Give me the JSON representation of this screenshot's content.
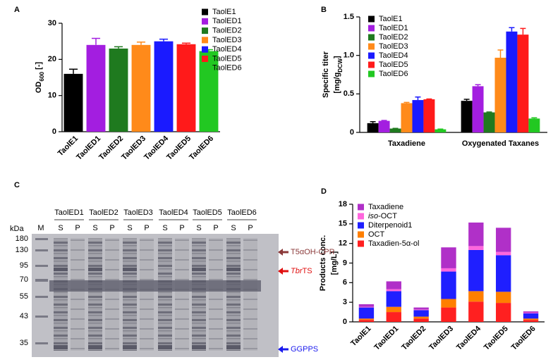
{
  "chart_data": [
    {
      "panel": "A",
      "type": "bar",
      "ylabel": [
        [
          {
            "text": "OD"
          },
          {
            "sub": "600"
          },
          {
            "text": " [-]"
          }
        ]
      ],
      "categories": [
        "TaolE1",
        "TaolED1",
        "TaolED2",
        "TaolED3",
        "TaolED4",
        "TaolED5",
        "TaolED6"
      ],
      "values": [
        16,
        24,
        23,
        24,
        25,
        24.2,
        22.3
      ],
      "errors": [
        1.3,
        1.8,
        0.5,
        0.8,
        0.6,
        0.3,
        0.4
      ],
      "colors": [
        "#000000",
        "#a31ee0",
        "#1f7a1f",
        "#ff8a1a",
        "#1a1aff",
        "#ff1a1a",
        "#22c822"
      ],
      "ylim": [
        0,
        30
      ],
      "yticks": [
        0,
        10,
        20,
        30
      ],
      "legend": "upper right"
    },
    {
      "panel": "B",
      "type": "grouped_bar",
      "ylabel": [
        [
          {
            "text": "Specific titer"
          }
        ],
        [
          {
            "text": "[mg/g"
          },
          {
            "sub": "DCW"
          },
          {
            "text": "]"
          }
        ]
      ],
      "categories": [
        "Taxadiene",
        "Oxygenated Taxanes"
      ],
      "series": [
        {
          "name": "TaolE1",
          "color": "#000000",
          "values": [
            0.12,
            0.41
          ],
          "errors": [
            0.02,
            0.02
          ]
        },
        {
          "name": "TaolED1",
          "color": "#a31ee0",
          "values": [
            0.15,
            0.6
          ],
          "errors": [
            0.005,
            0.02
          ]
        },
        {
          "name": "TaolED2",
          "color": "#1f7a1f",
          "values": [
            0.05,
            0.26
          ],
          "errors": [
            0.003,
            0.005
          ]
        },
        {
          "name": "TaolED3",
          "color": "#ff8a1a",
          "values": [
            0.38,
            0.97
          ],
          "errors": [
            0.01,
            0.1
          ]
        },
        {
          "name": "TaolED4",
          "color": "#1a1aff",
          "values": [
            0.42,
            1.31
          ],
          "errors": [
            0.04,
            0.05
          ]
        },
        {
          "name": "TaolED5",
          "color": "#ff1a1a",
          "values": [
            0.43,
            1.27
          ],
          "errors": [
            0.005,
            0.08
          ]
        },
        {
          "name": "TaolED6",
          "color": "#22c822",
          "values": [
            0.04,
            0.18
          ],
          "errors": [
            0.003,
            0.01
          ]
        }
      ],
      "ylim": [
        0,
        1.5
      ],
      "yticks": [
        0,
        0.5,
        {
          "value": 1,
          "label": "1.0"
        },
        1.5
      ],
      "legend": "upper left"
    },
    {
      "panel": "D",
      "type": "stacked_bar",
      "ylabel": [
        [
          {
            "text": "Products conc."
          }
        ],
        [
          {
            "text": "[mg/L]"
          }
        ]
      ],
      "categories": [
        "TaolE1",
        "TaolED1",
        "TaolED2",
        "TaolED3",
        "TaolED4",
        "TaolED5",
        "TaolED6"
      ],
      "series": [
        {
          "name": [
            {
              "text": "Taxadien-5α-ol"
            }
          ],
          "color": "#ff2020",
          "values": [
            0.3,
            1.5,
            0.5,
            2.2,
            3.1,
            2.9,
            0.3
          ]
        },
        {
          "name": [
            {
              "text": "OCT"
            }
          ],
          "color": "#ff7f00",
          "values": [
            0.2,
            0.8,
            0.3,
            1.3,
            1.6,
            1.7,
            0.2
          ]
        },
        {
          "name": [
            {
              "text": "Diterpenoid1"
            }
          ],
          "color": "#1f1fff",
          "values": [
            1.7,
            2.4,
            1.0,
            4.2,
            6.3,
            5.6,
            0.8
          ]
        },
        {
          "name": [
            {
              "italic": "iso"
            },
            {
              "text": "-OCT"
            }
          ],
          "color": "#ff66dd",
          "values": [
            0.1,
            0.3,
            0.1,
            0.5,
            0.6,
            0.5,
            0.1
          ]
        },
        {
          "name": [
            {
              "text": "Taxadiene"
            }
          ],
          "color": "#b030c8",
          "values": [
            0.4,
            1.2,
            0.3,
            3.2,
            3.6,
            3.7,
            0.2
          ]
        }
      ],
      "ylim": [
        0,
        18
      ],
      "yticks": [
        0,
        3,
        6,
        9,
        12,
        15,
        18
      ],
      "legend": "upper left"
    }
  ],
  "gel": {
    "panel": "C",
    "unit": "kDa",
    "marker": "M",
    "groups": [
      {
        "name": "TaolED1",
        "lanes": [
          "S",
          "P"
        ]
      },
      {
        "name": "TaolED2",
        "lanes": [
          "S",
          "P"
        ]
      },
      {
        "name": "TaolED3",
        "lanes": [
          "S",
          "P"
        ]
      },
      {
        "name": "TaolED4",
        "lanes": [
          "S",
          "P"
        ]
      },
      {
        "name": "TaolED5",
        "lanes": [
          "S",
          "P"
        ]
      },
      {
        "name": "TaolED6",
        "lanes": [
          "S",
          "P"
        ]
      }
    ],
    "ladder": [
      180,
      130,
      95,
      70,
      55,
      43,
      35
    ],
    "annotations": [
      {
        "text": [
          {
            "text": "T5αOH-CPR"
          }
        ],
        "color": "#8b3a3a"
      },
      {
        "text": [
          {
            "italic": "Tbr"
          },
          {
            "text": "TS"
          }
        ],
        "color": "#e01010"
      },
      {
        "text": [
          {
            "text": "GGPPS"
          }
        ],
        "color": "#1a1aee"
      }
    ]
  }
}
